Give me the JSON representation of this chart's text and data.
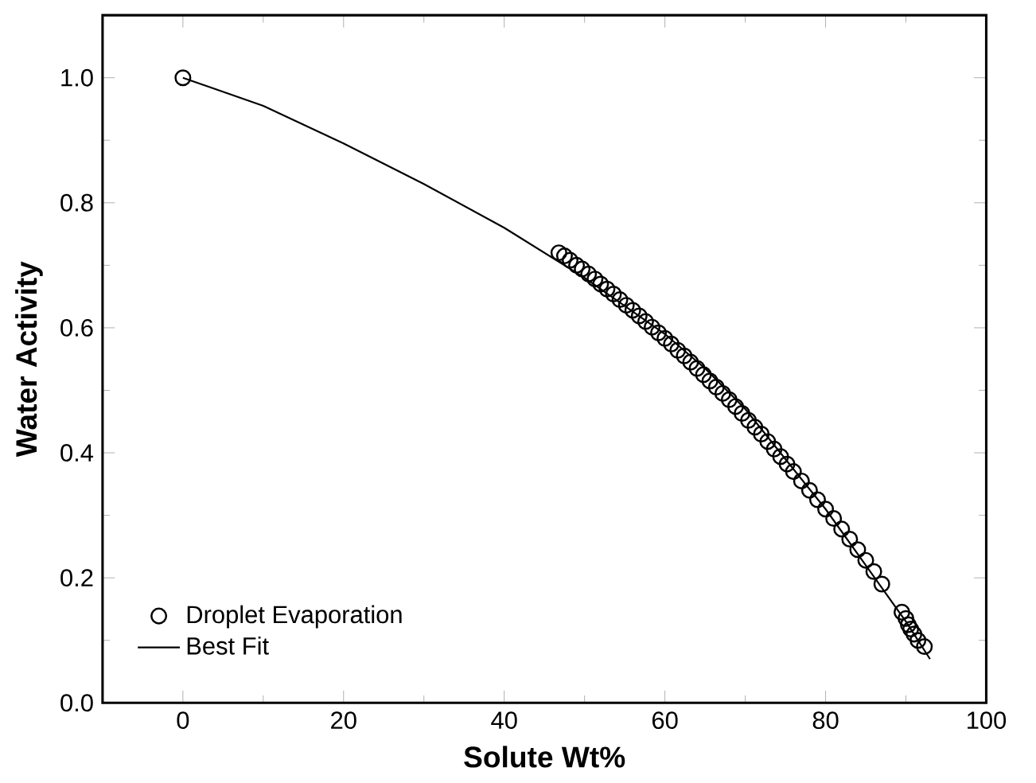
{
  "chart_data": {
    "type": "scatter",
    "xlabel": "Solute Wt%",
    "ylabel": "Water Activity",
    "xlim": [
      -10,
      100
    ],
    "ylim": [
      0,
      1.1
    ],
    "xticks": [
      0,
      20,
      40,
      60,
      80,
      100
    ],
    "yticks": [
      {
        "value": 0,
        "label": "0.0"
      },
      {
        "value": 0.2,
        "label": "0.2"
      },
      {
        "value": 0.4,
        "label": "0.4"
      },
      {
        "value": 0.6,
        "label": "0.6"
      },
      {
        "value": 0.8,
        "label": "0.8"
      },
      {
        "value": 1,
        "label": "1.0"
      }
    ],
    "legend": "bottom left",
    "grid": false,
    "series": [
      {
        "name": "Droplet Evaporation",
        "marker": "circle",
        "color": "#000000",
        "x": [
          0,
          46.8,
          47.5,
          48.2,
          49,
          49.7,
          50.5,
          51.3,
          52,
          52.8,
          53.6,
          54.4,
          55.2,
          56,
          56.8,
          57.6,
          58.4,
          59.2,
          60,
          60.8,
          61.6,
          62.4,
          63.2,
          64,
          64.8,
          65.6,
          66.4,
          67.2,
          68,
          68.8,
          69.6,
          70.4,
          71.2,
          72,
          72.8,
          73.6,
          74.4,
          75.2,
          76,
          77,
          78,
          79,
          80,
          81,
          82,
          83,
          84,
          85,
          86,
          87,
          89.5,
          90,
          90.3,
          90.6,
          91,
          91.5,
          92.3
        ],
        "values": [
          1.0,
          0.72,
          0.715,
          0.708,
          0.7,
          0.694,
          0.686,
          0.678,
          0.67,
          0.662,
          0.654,
          0.645,
          0.636,
          0.628,
          0.619,
          0.61,
          0.601,
          0.592,
          0.583,
          0.574,
          0.564,
          0.555,
          0.545,
          0.535,
          0.525,
          0.515,
          0.505,
          0.495,
          0.485,
          0.474,
          0.463,
          0.452,
          0.441,
          0.43,
          0.418,
          0.406,
          0.394,
          0.382,
          0.37,
          0.355,
          0.34,
          0.325,
          0.31,
          0.295,
          0.278,
          0.262,
          0.245,
          0.228,
          0.21,
          0.19,
          0.145,
          0.135,
          0.125,
          0.118,
          0.11,
          0.1,
          0.09
        ]
      },
      {
        "name": "Best Fit",
        "type": "line",
        "marker": "none",
        "line_style": "solid",
        "color": "#000000",
        "x": [
          0,
          10,
          20,
          30,
          40,
          50,
          60,
          65,
          70,
          75,
          80,
          85,
          90,
          93
        ],
        "values": [
          1.0,
          0.955,
          0.895,
          0.83,
          0.76,
          0.68,
          0.59,
          0.535,
          0.47,
          0.39,
          0.31,
          0.22,
          0.13,
          0.07
        ]
      }
    ]
  }
}
